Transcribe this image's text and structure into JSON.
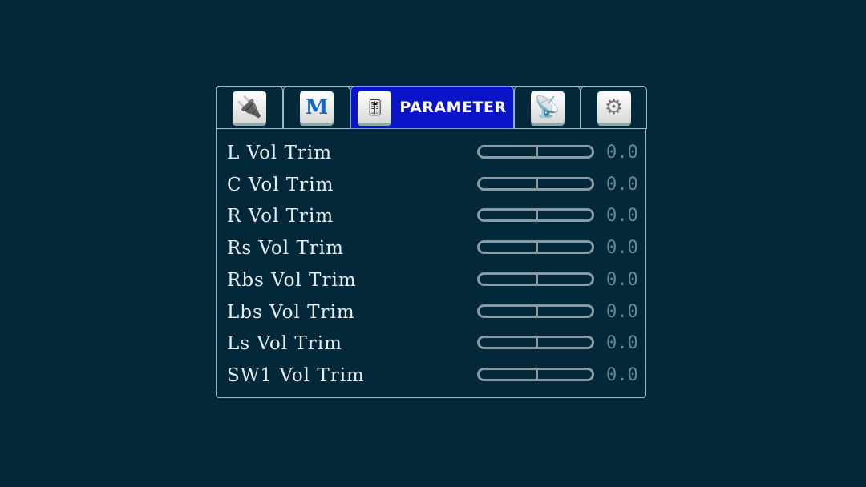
{
  "tabs": [
    {
      "icon": "hdmi-cable-icon",
      "label": ""
    },
    {
      "icon": "m-letter-icon",
      "label": "",
      "glyph": "M"
    },
    {
      "icon": "mixer-faders-icon",
      "label": "PARAMETER",
      "active": true
    },
    {
      "icon": "satellite-dish-icon",
      "label": ""
    },
    {
      "icon": "gears-icon",
      "label": ""
    }
  ],
  "rows": [
    {
      "label": "L Vol Trim",
      "value": "0.0",
      "level": 0.5
    },
    {
      "label": "C Vol Trim",
      "value": "0.0",
      "level": 0.5
    },
    {
      "label": "R Vol Trim",
      "value": "0.0",
      "level": 0.5
    },
    {
      "label": "Rs Vol Trim",
      "value": "0.0",
      "level": 0.5
    },
    {
      "label": "Rbs Vol Trim",
      "value": "0.0",
      "level": 0.5
    },
    {
      "label": "Lbs Vol Trim",
      "value": "0.0",
      "level": 0.5
    },
    {
      "label": "Ls Vol Trim",
      "value": "0.0",
      "level": 0.5
    },
    {
      "label": "SW1 Vol Trim",
      "value": "0.0",
      "level": 0.5
    }
  ],
  "colors": {
    "background": "#03283a",
    "active_tab": "#0a14c8"
  }
}
